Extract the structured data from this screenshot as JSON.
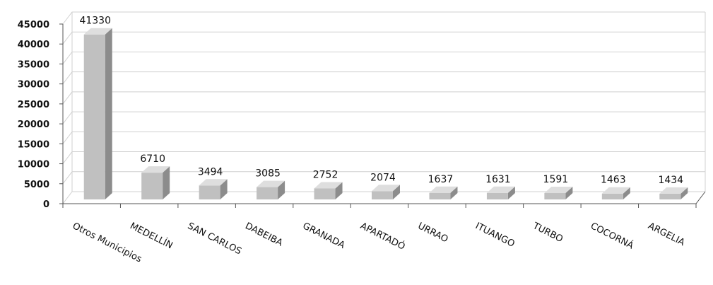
{
  "chart_data": {
    "type": "bar",
    "categories": [
      "Otros Municipios",
      "MEDELLÍN",
      "SAN CARLOS",
      "DABEIBA",
      "GRANADA",
      "APARTADÓ",
      "URRAO",
      "ITUANGO",
      "TURBO",
      "COCORNÁ",
      "ARGELIA"
    ],
    "values": [
      41330,
      6710,
      3494,
      3085,
      2752,
      2074,
      1637,
      1631,
      1591,
      1463,
      1434
    ],
    "data_labels": [
      "41330",
      "6710",
      "3494",
      "3085",
      "2752",
      "2074",
      "1637",
      "1631",
      "1591",
      "1463",
      "1434"
    ],
    "ylim": [
      0,
      45000
    ],
    "yticks": [
      0,
      5000,
      10000,
      15000,
      20000,
      25000,
      30000,
      35000,
      40000,
      45000
    ],
    "ytick_labels": [
      "0",
      "5000",
      "10000",
      "15000",
      "20000",
      "25000",
      "30000",
      "35000",
      "40000",
      "45000"
    ],
    "grid": true,
    "style": "3d-column",
    "colors": {
      "bar_front": "#c0c0c0",
      "bar_side": "#8c8c8c",
      "bar_top": "#dedede",
      "grid": "#d0d0d0",
      "axis": "#555555"
    }
  }
}
